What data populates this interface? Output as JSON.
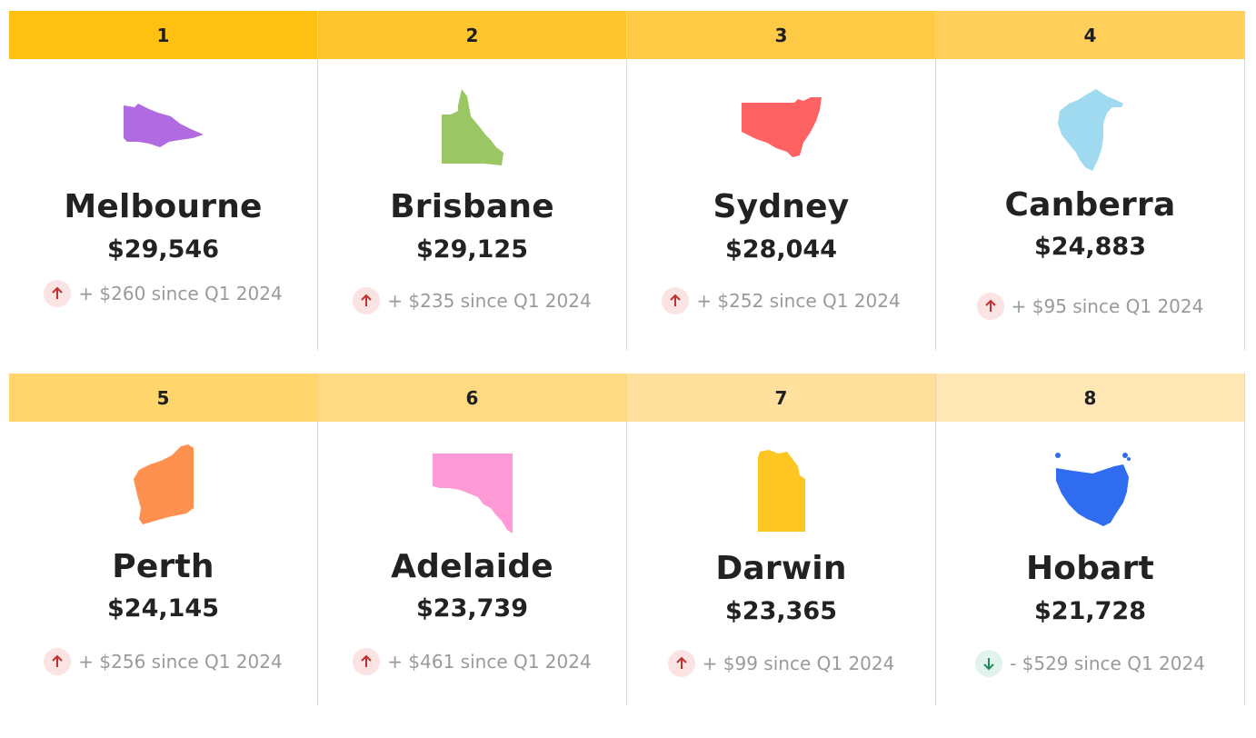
{
  "cards": [
    {
      "rank": "1",
      "city": "Melbourne",
      "price": "$29,546",
      "change": "+ $260 since Q1 2024",
      "direction": "up",
      "header_color": "#ffc012",
      "map_color": "#b06be0",
      "icon": "victoria-map-icon"
    },
    {
      "rank": "2",
      "city": "Brisbane",
      "price": "$29,125",
      "change": "+ $235 since Q1 2024",
      "direction": "up",
      "header_color": "#ffc52d",
      "map_color": "#9ac664",
      "icon": "queensland-map-icon"
    },
    {
      "rank": "3",
      "city": "Sydney",
      "price": "$28,044",
      "change": "+ $252 since Q1 2024",
      "direction": "up",
      "header_color": "#ffca46",
      "map_color": "#ff6262",
      "icon": "new-south-wales-map-icon"
    },
    {
      "rank": "4",
      "city": "Canberra",
      "price": "$24,883",
      "change": "+ $95 since Q1 2024",
      "direction": "up",
      "header_color": "#ffcf5a",
      "map_color": "#9fdaf0",
      "icon": "act-map-icon"
    },
    {
      "rank": "5",
      "city": "Perth",
      "price": "$24,145",
      "change": "+ $256 since Q1 2024",
      "direction": "up",
      "header_color": "#ffd56c",
      "map_color": "#ff9150",
      "icon": "western-australia-map-icon"
    },
    {
      "rank": "6",
      "city": "Adelaide",
      "price": "$23,739",
      "change": "+ $461 since Q1 2024",
      "direction": "up",
      "header_color": "#ffda83",
      "map_color": "#ff9ad7",
      "icon": "south-australia-map-icon"
    },
    {
      "rank": "7",
      "city": "Darwin",
      "price": "$23,365",
      "change": "+ $99 since Q1 2024",
      "direction": "up",
      "header_color": "#ffe09c",
      "map_color": "#ffc623",
      "icon": "northern-territory-map-icon"
    },
    {
      "rank": "8",
      "city": "Hobart",
      "price": "$21,728",
      "change": "- $529 since Q1 2024",
      "direction": "down",
      "header_color": "#ffe7b6",
      "map_color": "#2f6cf0",
      "icon": "tasmania-map-icon"
    }
  ],
  "colors": {
    "up_arrow": "#c0302f",
    "down_arrow": "#1f8a5b"
  }
}
